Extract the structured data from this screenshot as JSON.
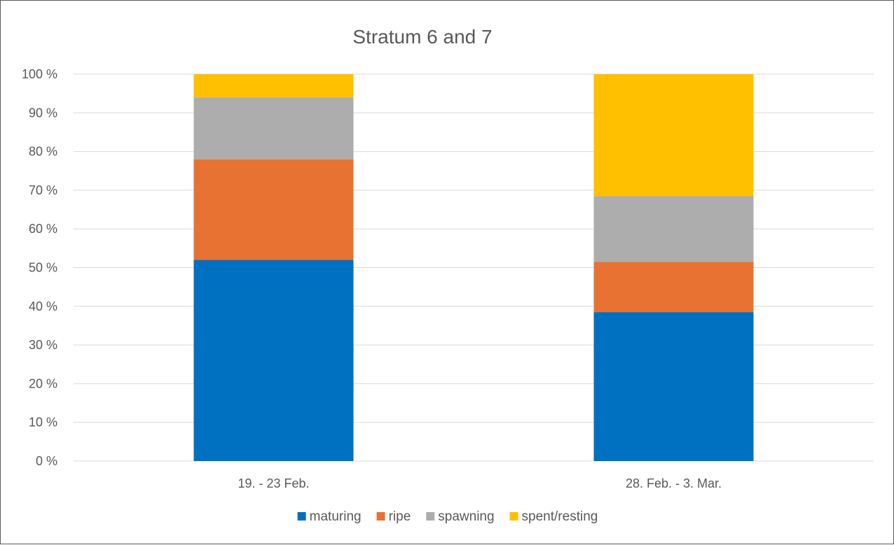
{
  "chart_data": {
    "type": "bar",
    "stacked": true,
    "percent_stacked": true,
    "title": "Stratum 6 and 7",
    "xlabel": "",
    "ylabel": "",
    "ylim": [
      0,
      100
    ],
    "yticks": [
      "0 %",
      "10 %",
      "20 %",
      "30 %",
      "40 %",
      "50 %",
      "60 %",
      "70 %",
      "80 %",
      "90 %",
      "100 %"
    ],
    "categories": [
      "19. - 23 Feb.",
      "28. Feb. - 3. Mar."
    ],
    "series": [
      {
        "name": "maturing",
        "color": "#0070c0",
        "values": [
          52,
          38.5
        ]
      },
      {
        "name": "ripe",
        "color": "#e87232",
        "values": [
          26,
          13
        ]
      },
      {
        "name": "spawning",
        "color": "#adadad",
        "values": [
          16,
          17
        ]
      },
      {
        "name": "spent/resting",
        "color": "#ffc000",
        "values": [
          6,
          31.5
        ]
      }
    ],
    "grid": true,
    "legend_position": "bottom"
  }
}
